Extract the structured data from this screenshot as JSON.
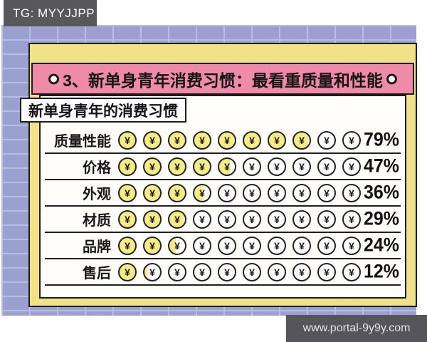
{
  "header": {
    "tg_label": "TG: MYYJJPP"
  },
  "footer": {
    "url": "www.portal-9y9y.com"
  },
  "card": {
    "title": "3、新单身青年消费习惯：最看重质量和性能",
    "subtitle": "新单身青年的消费习惯"
  },
  "chart_data": {
    "type": "bar",
    "style": "pictograph",
    "icon": "yen-coin-icon",
    "icon_glyph": "¥",
    "icons_per_row": 10,
    "icon_unit_percent": 10,
    "title": "新单身青年的消费习惯",
    "categories": [
      "质量性能",
      "价格",
      "外观",
      "材质",
      "品牌",
      "售后"
    ],
    "values": [
      79,
      47,
      36,
      29,
      24,
      12
    ],
    "value_suffix": "%",
    "xlim": [
      0,
      100
    ],
    "grid": "row-underlines",
    "legend": "none"
  },
  "colors": {
    "background_brick": "#9aa0cf",
    "brick_mortar": "#b9bde0",
    "badge_dark": "#58585b",
    "pink_bar": "#f08aa9",
    "yellow_frame": "#f2e287",
    "coin_fill": "#f5ec83",
    "coin_empty": "#ffffff",
    "ink": "#1d1d1f",
    "content_bg": "#fffefa"
  }
}
